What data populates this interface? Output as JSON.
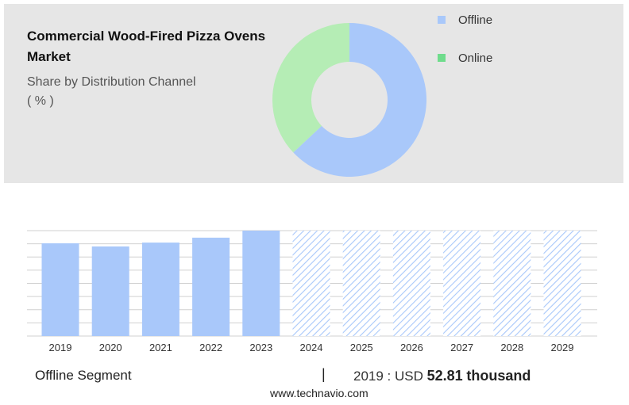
{
  "header": {
    "title": "Commercial Wood-Fired Pizza Ovens Market",
    "subtitle": "Share by Distribution Channel",
    "unit": "( % )"
  },
  "colors": {
    "panel_bg": "#e6e6e6",
    "offline": "#a9c8fa",
    "online": "#b5edb5",
    "online_legend": "#6fdc8c",
    "forecast_hatch": "#a9c8fa",
    "grid": "#d0d0d0"
  },
  "legend": {
    "items": [
      {
        "label": "Offline",
        "color": "#a9c8fa"
      },
      {
        "label": "Online",
        "color": "#6fdc8c"
      }
    ]
  },
  "footer": {
    "segment_label": "Offline Segment",
    "separator": "|",
    "value_prefix": "2019 : USD",
    "value_number": "52.81",
    "value_unit": "thousand",
    "source": "www.technavio.com"
  },
  "chart_data": [
    {
      "type": "pie",
      "donut": true,
      "categories": [
        "Offline",
        "Online"
      ],
      "values": [
        63,
        37
      ]
    },
    {
      "type": "bar",
      "categories": [
        "2019",
        "2020",
        "2021",
        "2022",
        "2023",
        "2024",
        "2025",
        "2026",
        "2027",
        "2028",
        "2029"
      ],
      "values": [
        52.81,
        51.0,
        53.2,
        56.0,
        60.0,
        60.0,
        60.0,
        60.0,
        60.0,
        60.0,
        60.0
      ],
      "forecast_from": "2024",
      "ylim": [
        0,
        60
      ],
      "grid": true
    }
  ]
}
